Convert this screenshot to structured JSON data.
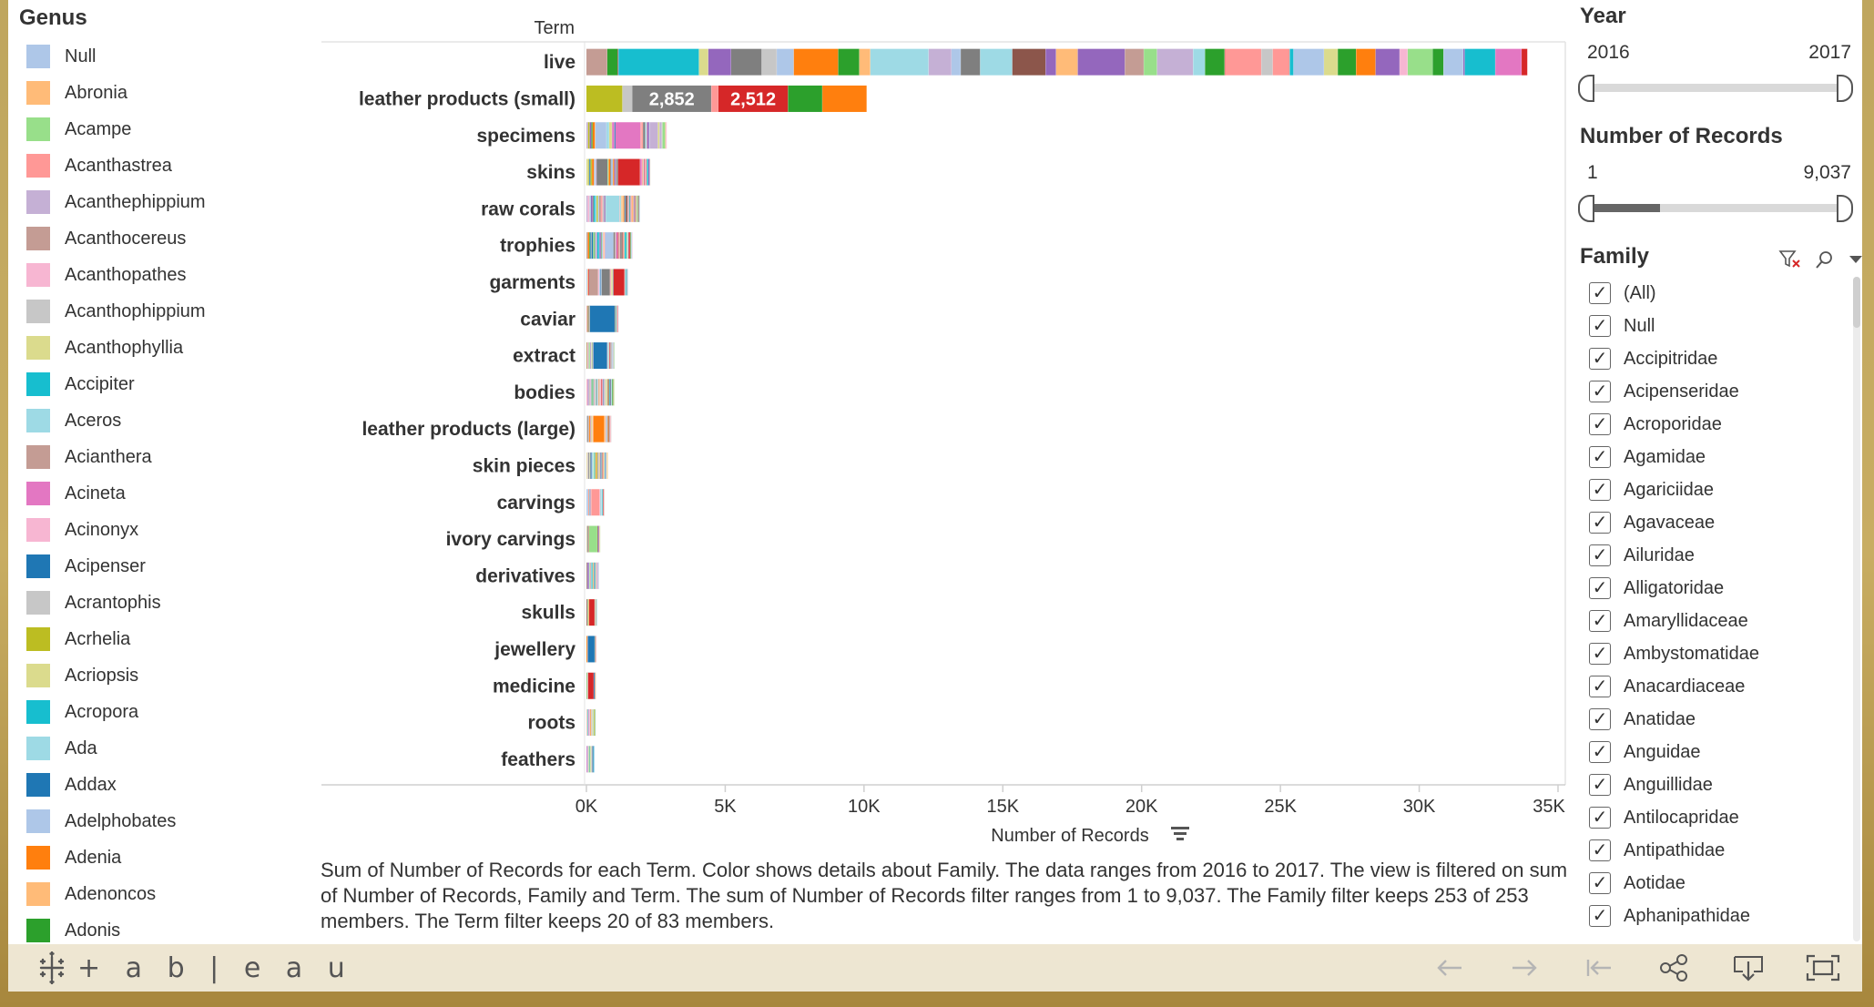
{
  "legend": {
    "title": "Genus",
    "items": [
      {
        "label": "Null",
        "color": "#aec7e8"
      },
      {
        "label": "Abronia",
        "color": "#ffbb78"
      },
      {
        "label": "Acampe",
        "color": "#98df8a"
      },
      {
        "label": "Acanthastrea",
        "color": "#ff9896"
      },
      {
        "label": "Acanthephippium",
        "color": "#c5b0d5"
      },
      {
        "label": "Acanthocereus",
        "color": "#c49c94"
      },
      {
        "label": "Acanthopathes",
        "color": "#f7b6d2"
      },
      {
        "label": "Acanthophippium",
        "color": "#c7c7c7"
      },
      {
        "label": "Acanthophyllia",
        "color": "#dbdb8d"
      },
      {
        "label": "Accipiter",
        "color": "#17becf"
      },
      {
        "label": "Aceros",
        "color": "#9edae5"
      },
      {
        "label": "Acianthera",
        "color": "#c49c94"
      },
      {
        "label": "Acineta",
        "color": "#e377c2"
      },
      {
        "label": "Acinonyx",
        "color": "#f7b6d2"
      },
      {
        "label": "Acipenser",
        "color": "#1f77b4"
      },
      {
        "label": "Acrantophis",
        "color": "#c7c7c7"
      },
      {
        "label": "Acrhelia",
        "color": "#bcbd22"
      },
      {
        "label": "Acriopsis",
        "color": "#dbdb8d"
      },
      {
        "label": "Acropora",
        "color": "#17becf"
      },
      {
        "label": "Ada",
        "color": "#9edae5"
      },
      {
        "label": "Addax",
        "color": "#1f77b4"
      },
      {
        "label": "Adelphobates",
        "color": "#aec7e8"
      },
      {
        "label": "Adenia",
        "color": "#ff7f0e"
      },
      {
        "label": "Adenoncos",
        "color": "#ffbb78"
      },
      {
        "label": "Adonis",
        "color": "#2ca02c"
      }
    ]
  },
  "chart_data": {
    "type": "bar",
    "orientation": "horizontal",
    "stacked": true,
    "column_header": "Term",
    "xlabel": "Number of Records",
    "xlim": [
      0,
      35000
    ],
    "xticks": [
      0,
      5000,
      10000,
      15000,
      20000,
      25000,
      30000,
      35000
    ],
    "xtick_labels": [
      "0K",
      "5K",
      "10K",
      "15K",
      "20K",
      "25K",
      "30K",
      "35K"
    ],
    "categories": [
      "live",
      "leather products (small)",
      "specimens",
      "skins",
      "raw corals",
      "trophies",
      "garments",
      "caviar",
      "extract",
      "bodies",
      "leather products (large)",
      "skin pieces",
      "carvings",
      "ivory carvings",
      "derivatives",
      "skulls",
      "jewellery",
      "medicine",
      "roots",
      "feathers"
    ],
    "totals": [
      33900,
      10100,
      2900,
      2300,
      1900,
      1650,
      1500,
      1150,
      1000,
      1000,
      900,
      750,
      650,
      500,
      450,
      400,
      350,
      330,
      330,
      300
    ],
    "segments": [
      [
        {
          "v": 2900,
          "c": "#17becf"
        },
        {
          "v": 1100,
          "c": "#7f7f7f"
        },
        {
          "v": 1600,
          "c": "#ff7f0e"
        },
        {
          "v": 2100,
          "c": "#9edae5"
        },
        {
          "v": 700,
          "c": "#7f7f7f"
        },
        {
          "v": 1200,
          "c": "#8c564b"
        },
        {
          "v": 1700,
          "c": "#9467bd"
        },
        {
          "v": 1300,
          "c": "#c5b0d5"
        },
        {
          "v": 1300,
          "c": "#ff9896"
        },
        {
          "v": 1100,
          "c": "#aec7e8"
        },
        {
          "v": 700,
          "c": "#ff7f0e"
        },
        {
          "v": 900,
          "c": "#98df8a"
        },
        {
          "v": 1100,
          "c": "#17becf"
        }
      ],
      [
        {
          "v": 1300,
          "c": "#bcbd22"
        },
        {
          "v": 350,
          "c": "#c7c7c7"
        },
        {
          "v": 2852,
          "c": "#7f7f7f",
          "label": "2,852"
        },
        {
          "v": 250,
          "c": "#ff9896"
        },
        {
          "v": 2512,
          "c": "#d62728",
          "label": "2,512"
        },
        {
          "v": 1236,
          "c": "#2ca02c"
        },
        {
          "v": 1600,
          "c": "#ff7f0e"
        }
      ],
      [
        {
          "v": 400,
          "c": "#aec7e8"
        },
        {
          "v": 900,
          "c": "#e377c2"
        },
        {
          "v": 300,
          "c": "#c5b0d5"
        }
      ],
      [
        {
          "v": 400,
          "c": "#7f7f7f"
        },
        {
          "v": 800,
          "c": "#d62728"
        }
      ],
      [
        {
          "v": 500,
          "c": "#9edae5"
        }
      ],
      [
        {
          "v": 300,
          "c": "#aec7e8"
        }
      ],
      [
        {
          "v": 300,
          "c": "#c49c94"
        },
        {
          "v": 300,
          "c": "#7f7f7f"
        },
        {
          "v": 400,
          "c": "#d62728"
        }
      ],
      [
        {
          "v": 900,
          "c": "#1f77b4"
        }
      ],
      [
        {
          "v": 500,
          "c": "#1f77b4"
        }
      ],
      [],
      [
        {
          "v": 400,
          "c": "#ff7f0e"
        }
      ],
      [],
      [
        {
          "v": 300,
          "c": "#ff9896"
        }
      ],
      [
        {
          "v": 300,
          "c": "#98df8a"
        }
      ],
      [],
      [
        {
          "v": 200,
          "c": "#d62728"
        }
      ],
      [
        {
          "v": 250,
          "c": "#1f77b4"
        }
      ],
      [
        {
          "v": 200,
          "c": "#d62728"
        }
      ],
      [],
      []
    ],
    "palette": [
      "#1f77b4",
      "#aec7e8",
      "#ff7f0e",
      "#ffbb78",
      "#2ca02c",
      "#98df8a",
      "#d62728",
      "#ff9896",
      "#9467bd",
      "#c5b0d5",
      "#8c564b",
      "#c49c94",
      "#e377c2",
      "#f7b6d2",
      "#7f7f7f",
      "#c7c7c7",
      "#bcbd22",
      "#dbdb8d",
      "#17becf",
      "#9edae5"
    ]
  },
  "caption": "Sum of Number of Records for each Term.  Color shows details about Family. The data ranges from 2016 to 2017. The view is filtered on sum of Number of Records, Family and Term. The sum of Number of Records filter ranges from 1 to 9,037. The Family filter keeps 253 of 253 members. The Term filter keeps 20 of 83 members.",
  "filters": {
    "year": {
      "title": "Year",
      "min_label": "2016",
      "max_label": "2017",
      "sel_min": 0,
      "sel_max": 1
    },
    "records": {
      "title": "Number of Records",
      "min_label": "1",
      "max_label": "9,037",
      "sel_min": 0,
      "sel_max": 0.28
    },
    "family": {
      "title": "Family",
      "items": [
        "(All)",
        "Null",
        "Accipitridae",
        "Acipenseridae",
        "Acroporidae",
        "Agamidae",
        "Agariciidae",
        "Agavaceae",
        "Ailuridae",
        "Alligatoridae",
        "Amaryllidaceae",
        "Ambystomatidae",
        "Anacardiaceae",
        "Anatidae",
        "Anguidae",
        "Anguillidae",
        "Antilocapridae",
        "Antipathidae",
        "Aotidae",
        "Aphanipathidae"
      ],
      "check_glyph": "✓"
    }
  },
  "toolbar": {
    "brand": "+ a b | e a u",
    "icons": [
      "undo-icon",
      "redo-icon",
      "revert-icon",
      "share-icon",
      "download-icon",
      "fullscreen-icon"
    ]
  }
}
